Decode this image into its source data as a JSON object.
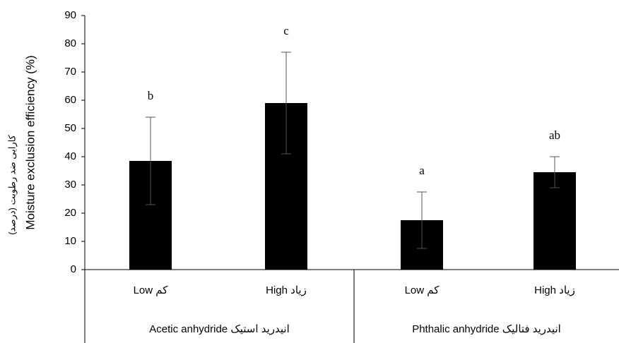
{
  "chart_data": {
    "type": "bar",
    "y_label": "Moisture exclusion efficiency (%)",
    "y_label_secondary": "کارایی ضد رطوبت  (درصد)",
    "categories": [
      "Low کم",
      "High زیاد",
      "Low کم",
      "High زیاد"
    ],
    "groups": [
      "Acetic anhydride انیدرید استیک",
      "Phthalic anhydride انیدرید فتالیک"
    ],
    "values": [
      38.5,
      59,
      17.5,
      34.5
    ],
    "errors": [
      15.5,
      18,
      10,
      5.5
    ],
    "annotations": [
      "b",
      "c",
      "a",
      "ab"
    ],
    "color": "#000000",
    "error_color": "#555555",
    "ylim": [
      0,
      90
    ],
    "yticks": [
      0,
      10,
      20,
      30,
      40,
      50,
      60,
      70,
      80,
      90
    ],
    "grid": false
  }
}
